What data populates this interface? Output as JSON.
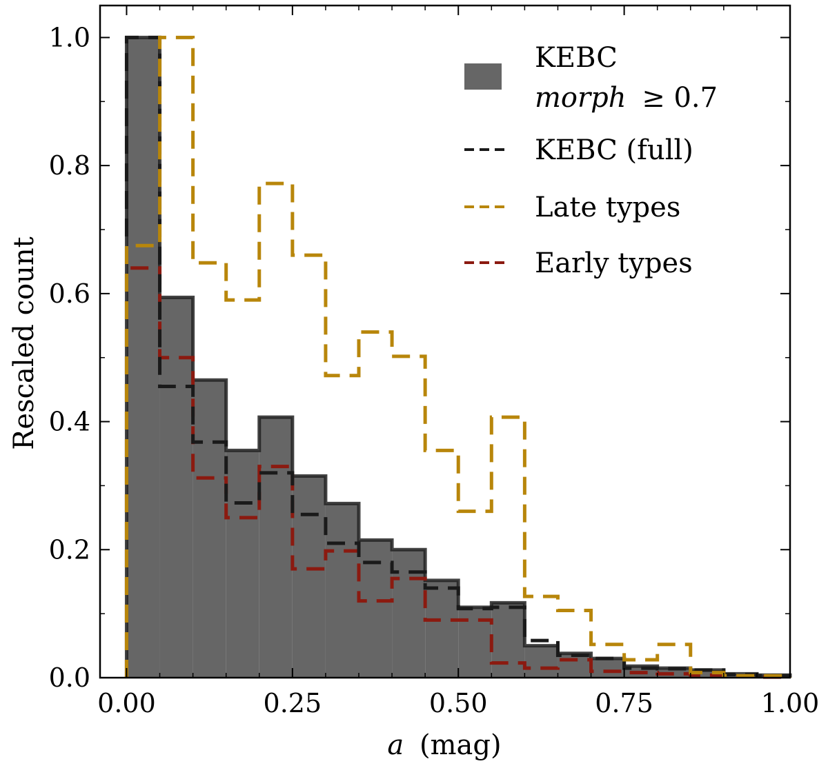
{
  "chart_data": {
    "type": "histogram",
    "bin_edges": [
      0.0,
      0.05,
      0.1,
      0.15,
      0.2,
      0.25,
      0.3,
      0.35,
      0.4,
      0.45,
      0.5,
      0.55,
      0.6,
      0.65,
      0.7,
      0.75,
      0.8,
      0.85,
      0.9,
      0.95,
      1.0
    ],
    "xlabel_var": "a",
    "xlabel_unit": "(mag)",
    "ylabel": "Rescaled count",
    "xlim": [
      -0.04,
      1.0
    ],
    "ylim": [
      0.0,
      1.05
    ],
    "xticks": [
      0.0,
      0.25,
      0.5,
      0.75,
      1.0
    ],
    "xtick_labels": [
      "0.00",
      "0.25",
      "0.50",
      "0.75",
      "1.00"
    ],
    "yticks": [
      0.0,
      0.2,
      0.4,
      0.6,
      0.8,
      1.0
    ],
    "ytick_labels": [
      "0.0",
      "0.2",
      "0.4",
      "0.6",
      "0.8",
      "1.0"
    ],
    "legend_placement": "top-right",
    "series": [
      {
        "name_line1": "KEBC",
        "name_line2_var": "morph",
        "name_line2_rest": "≥ 0.7",
        "style": "filled",
        "color": "#666666",
        "edge_color": "#222222",
        "values": [
          1.0,
          0.594,
          0.465,
          0.355,
          0.407,
          0.315,
          0.272,
          0.215,
          0.2,
          0.152,
          0.11,
          0.117,
          0.05,
          0.038,
          0.03,
          0.018,
          0.015,
          0.012,
          0.006,
          0.004
        ]
      },
      {
        "name": "KEBC (full)",
        "style": "dashed",
        "color": "#1a1a1a",
        "values": [
          1.0,
          0.455,
          0.368,
          0.273,
          0.32,
          0.255,
          0.21,
          0.18,
          0.165,
          0.14,
          0.108,
          0.11,
          0.058,
          0.035,
          0.03,
          0.015,
          0.014,
          0.012,
          0.005,
          0.003
        ]
      },
      {
        "name": "Late types",
        "style": "dashed",
        "color": "#b8860b",
        "values": [
          0.675,
          1.0,
          0.648,
          0.59,
          0.772,
          0.66,
          0.472,
          0.54,
          0.502,
          0.355,
          0.26,
          0.407,
          0.127,
          0.105,
          0.052,
          0.028,
          0.052,
          0.008,
          0.003,
          0.003
        ]
      },
      {
        "name": "Early types",
        "style": "dashed",
        "color": "#8b1a10",
        "values": [
          0.64,
          0.5,
          0.312,
          0.25,
          0.33,
          0.17,
          0.198,
          0.12,
          0.155,
          0.09,
          0.09,
          0.023,
          0.015,
          0.028,
          0.01,
          0.008,
          0.006,
          0.004,
          0.002,
          0.001
        ]
      }
    ]
  }
}
